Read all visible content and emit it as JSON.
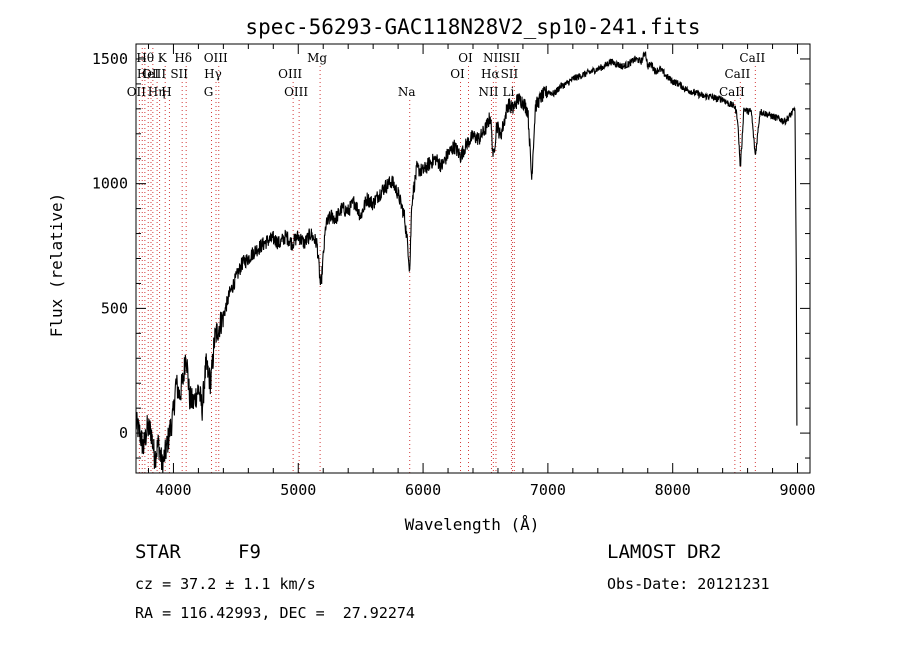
{
  "chart_data": {
    "type": "line",
    "title": "spec-56293-GAC118N28V2_sp10-241.fits",
    "xlabel": "Wavelength (Å)",
    "ylabel": "Flux (relative)",
    "xlim": [
      3700,
      9100
    ],
    "ylim": [
      -160,
      1560
    ],
    "xticks": [
      4000,
      5000,
      6000,
      7000,
      8000,
      9000
    ],
    "yticks": [
      0,
      500,
      1000,
      1500
    ],
    "grid": false,
    "legend": "none",
    "series": [
      {
        "x": [
          3700,
          3730,
          3760,
          3790,
          3820,
          3850,
          3880,
          3910,
          3940,
          3960,
          3980,
          4000,
          4020,
          4050,
          4080,
          4100,
          4130,
          4160,
          4200,
          4230,
          4260,
          4300,
          4330,
          4360,
          4400,
          4450,
          4500,
          4550,
          4600,
          4650,
          4700,
          4750,
          4800,
          4850,
          4900,
          4950,
          5000,
          5050,
          5100,
          5150,
          5180,
          5220,
          5260,
          5300,
          5350,
          5400,
          5450,
          5500,
          5550,
          5600,
          5650,
          5700,
          5750,
          5800,
          5850,
          5880,
          5893,
          5910,
          5950,
          6000,
          6050,
          6100,
          6150,
          6200,
          6250,
          6300,
          6350,
          6400,
          6450,
          6500,
          6540,
          6563,
          6590,
          6620,
          6650,
          6680,
          6720,
          6760,
          6800,
          6840,
          6870,
          6900,
          6950,
          7000,
          7050,
          7100,
          7150,
          7200,
          7250,
          7300,
          7350,
          7400,
          7450,
          7500,
          7550,
          7600,
          7650,
          7700,
          7750,
          7780,
          7800,
          7830,
          7860,
          7900,
          7950,
          8000,
          8050,
          8100,
          8150,
          8200,
          8250,
          8300,
          8350,
          8400,
          8450,
          8498,
          8520,
          8542,
          8570,
          8600,
          8630,
          8662,
          8700,
          8750,
          8800,
          8850,
          8900,
          8950,
          8980,
          8990,
          8995
        ],
        "y": [
          40,
          0,
          -60,
          20,
          10,
          -100,
          -40,
          -130,
          -70,
          -20,
          30,
          80,
          200,
          150,
          220,
          330,
          140,
          120,
          180,
          100,
          270,
          200,
          380,
          420,
          470,
          560,
          620,
          680,
          700,
          730,
          750,
          770,
          780,
          760,
          790,
          760,
          790,
          760,
          800,
          760,
          580,
          830,
          870,
          860,
          900,
          890,
          930,
          870,
          940,
          920,
          960,
          990,
          1010,
          960,
          870,
          740,
          650,
          930,
          1060,
          1050,
          1080,
          1100,
          1070,
          1120,
          1150,
          1110,
          1160,
          1190,
          1180,
          1220,
          1270,
          1100,
          1240,
          1190,
          1250,
          1320,
          1300,
          1340,
          1330,
          1290,
          1020,
          1310,
          1350,
          1370,
          1360,
          1390,
          1400,
          1420,
          1430,
          1440,
          1450,
          1460,
          1470,
          1490,
          1480,
          1470,
          1480,
          1500,
          1490,
          1530,
          1470,
          1480,
          1450,
          1460,
          1430,
          1410,
          1400,
          1380,
          1370,
          1360,
          1350,
          1350,
          1340,
          1340,
          1320,
          1310,
          1260,
          1060,
          1300,
          1290,
          1290,
          1110,
          1290,
          1280,
          1270,
          1260,
          1250,
          1280,
          1300,
          640,
          30
        ]
      }
    ],
    "lines": [
      {
        "x": 3727,
        "label": "OII",
        "row": 3
      },
      {
        "x": 3750,
        "label": "",
        "row": 0
      },
      {
        "x": 3771,
        "label": "",
        "row": 0
      },
      {
        "x": 3798,
        "label": "Hθ",
        "row": 1
      },
      {
        "x": 3820,
        "label": "HeI",
        "row": 2
      },
      {
        "x": 3835,
        "label": "",
        "row": 0
      },
      {
        "x": 3869,
        "label": "OIII",
        "row": 2
      },
      {
        "x": 3889,
        "label": "Hη",
        "row": 3
      },
      {
        "x": 3934,
        "label": "K",
        "row": 1
      },
      {
        "x": 3968,
        "label": "H",
        "row": 3
      },
      {
        "x": 4070,
        "label": "SII",
        "row": 2
      },
      {
        "x": 4102,
        "label": "Hδ",
        "row": 1
      },
      {
        "x": 4305,
        "label": "G",
        "row": 3
      },
      {
        "x": 4341,
        "label": "Hγ",
        "row": 2
      },
      {
        "x": 4363,
        "label": "OIII",
        "row": 1
      },
      {
        "x": 4959,
        "label": "OIII",
        "row": 2
      },
      {
        "x": 5007,
        "label": "OIII",
        "row": 3
      },
      {
        "x": 5175,
        "label": "Mg",
        "row": 1
      },
      {
        "x": 5893,
        "label": "Na",
        "row": 3
      },
      {
        "x": 6300,
        "label": "OI",
        "row": 2
      },
      {
        "x": 6364,
        "label": "OI",
        "row": 1
      },
      {
        "x": 6548,
        "label": "NII",
        "row": 3
      },
      {
        "x": 6563,
        "label": "Hα",
        "row": 2
      },
      {
        "x": 6584,
        "label": "NII",
        "row": 1
      },
      {
        "x": 6708,
        "label": "Li",
        "row": 3
      },
      {
        "x": 6716,
        "label": "SII",
        "row": 2
      },
      {
        "x": 6731,
        "label": "SII",
        "row": 1
      },
      {
        "x": 8498,
        "label": "CaII",
        "row": 3
      },
      {
        "x": 8542,
        "label": "CaII",
        "row": 2
      },
      {
        "x": 8662,
        "label": "CaII",
        "row": 1
      }
    ]
  },
  "info": {
    "object_type": "STAR",
    "subclass": "F9",
    "survey": "LAMOST DR2",
    "redshift": "cz = 37.2 ± 1.1 km/s",
    "obs_date": "Obs-Date: 20121231",
    "coords": "RA = 116.42993, DEC =  27.92274"
  }
}
